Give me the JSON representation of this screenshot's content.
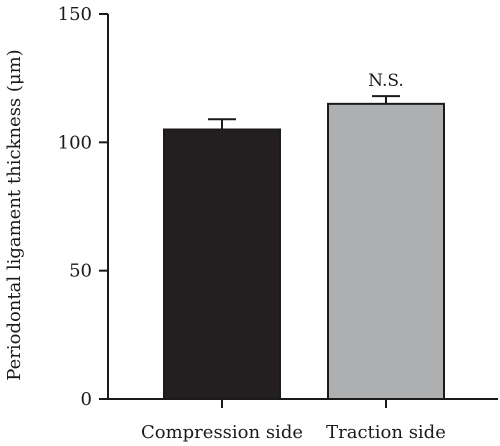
{
  "chart_data": {
    "type": "bar",
    "title": "",
    "xlabel": "",
    "ylabel": "Periodontal ligament thickness (μm)",
    "ylim": [
      0,
      150
    ],
    "yticks": [
      0,
      50,
      100,
      150
    ],
    "yticklabels": [
      "0",
      "50",
      "100",
      "150"
    ],
    "categories": [
      "Compression side",
      "Traction side"
    ],
    "values": [
      105,
      115
    ],
    "errors": [
      4,
      3
    ],
    "colors": [
      "#231f20",
      "#aeafb1"
    ],
    "annotations": [
      {
        "category": "Traction side",
        "text": "N.S."
      }
    ],
    "grid": false,
    "legend": "none"
  }
}
